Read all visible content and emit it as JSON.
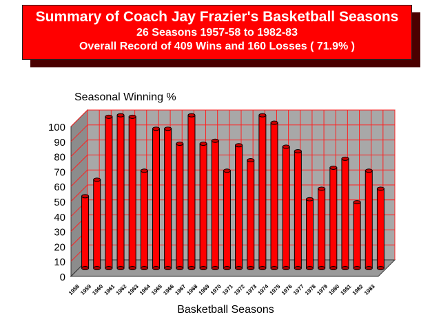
{
  "banner": {
    "title": "Summary of Coach Jay Frazier's Basketball Seasons",
    "subtitle": "26 Seasons    1957-58 to 1982-83",
    "record": "Overall Record of 409 Wins and 160 Losses ( 71.9% )"
  },
  "colors": {
    "banner": "#ff0000",
    "bar": "#ff0000",
    "wall": "#a8a8a8",
    "grid": "#ff2020"
  },
  "chart_data": {
    "type": "bar",
    "title": "",
    "ylabel": "Seasonal Winning %",
    "xlabel": "Basketball Seasons",
    "ylim": [
      0,
      100
    ],
    "yticks": [
      0,
      10,
      20,
      30,
      40,
      50,
      60,
      70,
      80,
      90,
      100
    ],
    "grid": true,
    "style": "3d-cylinder",
    "categories": [
      "1958",
      "1959",
      "1960",
      "1961",
      "1962",
      "1963",
      "1964",
      "1965",
      "1966",
      "1967",
      "1968",
      "1969",
      "1970",
      "1971",
      "1972",
      "1973",
      "1974",
      "1975",
      "1976",
      "1977",
      "1978",
      "1979",
      "1980",
      "1981",
      "1982",
      "1983"
    ],
    "values": [
      48,
      59,
      101,
      102,
      101,
      65,
      93,
      93,
      83,
      102,
      83,
      85,
      65,
      82,
      72,
      102,
      97,
      81,
      78,
      46,
      53,
      67,
      73,
      44,
      65,
      53
    ]
  }
}
